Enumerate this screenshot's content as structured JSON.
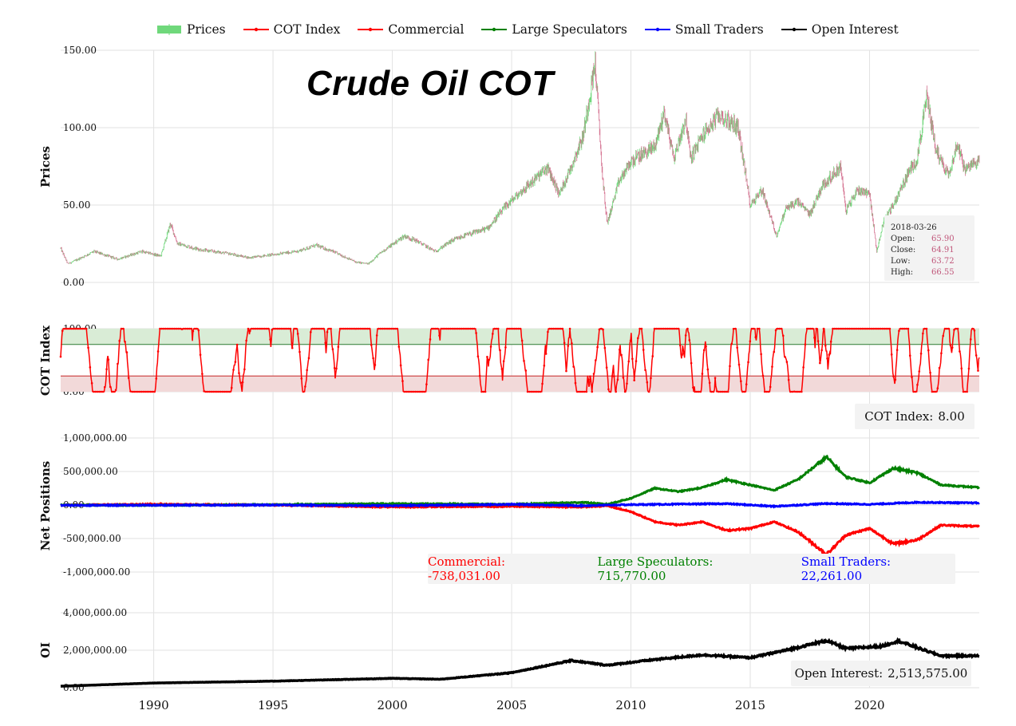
{
  "legend": [
    {
      "label": "Prices",
      "color": "#6fd87b",
      "kind": "bar"
    },
    {
      "label": "COT Index",
      "color": "#ff0000",
      "kind": "line"
    },
    {
      "label": "Commercial",
      "color": "#ff0000",
      "kind": "line"
    },
    {
      "label": "Large Speculators",
      "color": "#008000",
      "kind": "line"
    },
    {
      "label": "Small Traders",
      "color": "#0000ff",
      "kind": "line"
    },
    {
      "label": "Open Interest",
      "color": "#000000",
      "kind": "line"
    }
  ],
  "title": "Crude Oil COT",
  "colors": {
    "up": "#6fd87b",
    "down": "#d4708f",
    "grid": "#e2e2e2",
    "cot_high_band": "#d9ecd6",
    "cot_low_band": "#f2d9d9",
    "cot_upper_line": "#2e7d32",
    "cot_lower_line": "#c62828"
  },
  "ohlc_tooltip": {
    "date": "2018-03-26",
    "open_label": "Open:",
    "open": "65.90",
    "close_label": "Close:",
    "close": "64.91",
    "low_label": "Low:",
    "low": "63.72",
    "high_label": "High:",
    "high": "66.55"
  },
  "cot_tooltip": {
    "label": "COT Index:",
    "value": "8.00"
  },
  "net_tooltip": {
    "commercial_label": "Commercial:",
    "commercial": "-738,031.00",
    "large_label": "Large Speculators:",
    "large": "715,770.00",
    "small_label": "Small Traders:",
    "small": "22,261.00"
  },
  "oi_tooltip": {
    "label": "Open Interest:",
    "value": "2,513,575.00"
  },
  "chart_data": [
    {
      "type": "candlestick",
      "ylabel": "Prices",
      "ylim": [
        0,
        150
      ],
      "yticks": [
        "0.00",
        "50.00",
        "100.00",
        "150.00"
      ],
      "x_range": [
        1986.1,
        2024.6
      ],
      "x_tick_labels": [
        "1990",
        "1995",
        "2000",
        "2005",
        "2010",
        "2015",
        "2020"
      ],
      "close_trend": [
        [
          1986.1,
          22
        ],
        [
          1986.4,
          12
        ],
        [
          1986.7,
          14
        ],
        [
          1987.5,
          20
        ],
        [
          1988.5,
          15
        ],
        [
          1989.5,
          20
        ],
        [
          1990.3,
          17
        ],
        [
          1990.7,
          38
        ],
        [
          1991.0,
          25
        ],
        [
          1992.0,
          21
        ],
        [
          1993.0,
          19
        ],
        [
          1994.0,
          16
        ],
        [
          1995.0,
          18
        ],
        [
          1996.0,
          20
        ],
        [
          1996.8,
          24
        ],
        [
          1997.5,
          20
        ],
        [
          1998.5,
          13
        ],
        [
          1999.0,
          12
        ],
        [
          1999.5,
          19
        ],
        [
          2000.5,
          30
        ],
        [
          2001.0,
          27
        ],
        [
          2001.8,
          20
        ],
        [
          2002.5,
          27
        ],
        [
          2003.0,
          30
        ],
        [
          2004.0,
          35
        ],
        [
          2004.8,
          50
        ],
        [
          2005.5,
          60
        ],
        [
          2006.5,
          74
        ],
        [
          2007.0,
          57
        ],
        [
          2007.5,
          75
        ],
        [
          2008.0,
          95
        ],
        [
          2008.5,
          142
        ],
        [
          2008.8,
          70
        ],
        [
          2009.0,
          38
        ],
        [
          2009.5,
          65
        ],
        [
          2010.0,
          78
        ],
        [
          2011.0,
          88
        ],
        [
          2011.4,
          110
        ],
        [
          2011.8,
          80
        ],
        [
          2012.3,
          106
        ],
        [
          2012.5,
          80
        ],
        [
          2013.0,
          95
        ],
        [
          2013.7,
          108
        ],
        [
          2014.5,
          100
        ],
        [
          2015.0,
          50
        ],
        [
          2015.5,
          60
        ],
        [
          2016.1,
          30
        ],
        [
          2016.5,
          48
        ],
        [
          2017.0,
          52
        ],
        [
          2017.5,
          44
        ],
        [
          2018.0,
          62
        ],
        [
          2018.8,
          75
        ],
        [
          2019.0,
          46
        ],
        [
          2019.5,
          60
        ],
        [
          2020.0,
          58
        ],
        [
          2020.3,
          20
        ],
        [
          2020.6,
          40
        ],
        [
          2021.0,
          50
        ],
        [
          2021.6,
          70
        ],
        [
          2022.0,
          80
        ],
        [
          2022.4,
          120
        ],
        [
          2022.8,
          85
        ],
        [
          2023.3,
          70
        ],
        [
          2023.7,
          90
        ],
        [
          2024.0,
          72
        ],
        [
          2024.6,
          80
        ]
      ]
    },
    {
      "type": "line",
      "ylabel": "COT Index",
      "ylim": [
        0,
        100
      ],
      "yticks": [
        "0.00",
        "100.00"
      ],
      "bands": [
        [
          75,
          100
        ],
        [
          0,
          25
        ]
      ],
      "series": [
        {
          "name": "COT Index",
          "color": "#ff0000"
        }
      ]
    },
    {
      "type": "line",
      "ylabel": "Net Positions",
      "ylim": [
        -1000000,
        1000000
      ],
      "yticks": [
        "-1,000,000.00",
        "-500,000.00",
        "0.00",
        "500,000.00",
        "1,000,000.00"
      ],
      "series": [
        {
          "name": "Commercial",
          "color": "#ff0000",
          "trend": [
            [
              1986.1,
              0
            ],
            [
              1990,
              10000
            ],
            [
              1995,
              0
            ],
            [
              2000,
              -30000
            ],
            [
              2005,
              -20000
            ],
            [
              2008,
              -30000
            ],
            [
              2009,
              -10000
            ],
            [
              2010,
              -100000
            ],
            [
              2011,
              -250000
            ],
            [
              2012,
              -300000
            ],
            [
              2013,
              -250000
            ],
            [
              2014,
              -380000
            ],
            [
              2015,
              -350000
            ],
            [
              2016,
              -250000
            ],
            [
              2017,
              -400000
            ],
            [
              2018.2,
              -738031
            ],
            [
              2019,
              -450000
            ],
            [
              2020,
              -350000
            ],
            [
              2021,
              -580000
            ],
            [
              2022,
              -520000
            ],
            [
              2023,
              -300000
            ],
            [
              2024.6,
              -320000
            ]
          ]
        },
        {
          "name": "Large Speculators",
          "color": "#008000",
          "trend": [
            [
              1986.1,
              0
            ],
            [
              1990,
              -5000
            ],
            [
              1995,
              5000
            ],
            [
              2000,
              20000
            ],
            [
              2005,
              10000
            ],
            [
              2008,
              40000
            ],
            [
              2009,
              10000
            ],
            [
              2010,
              100000
            ],
            [
              2011,
              250000
            ],
            [
              2012,
              200000
            ],
            [
              2013,
              260000
            ],
            [
              2014,
              380000
            ],
            [
              2015,
              300000
            ],
            [
              2016,
              220000
            ],
            [
              2017,
              380000
            ],
            [
              2018.2,
              715770
            ],
            [
              2019,
              420000
            ],
            [
              2020,
              330000
            ],
            [
              2021,
              550000
            ],
            [
              2022,
              480000
            ],
            [
              2023,
              300000
            ],
            [
              2024.6,
              260000
            ]
          ]
        },
        {
          "name": "Small Traders",
          "color": "#0000ff",
          "trend": [
            [
              1986.1,
              -5000
            ],
            [
              1995,
              0
            ],
            [
              2000,
              -10000
            ],
            [
              2005,
              10000
            ],
            [
              2008,
              -10000
            ],
            [
              2010,
              5000
            ],
            [
              2014,
              20000
            ],
            [
              2016,
              -20000
            ],
            [
              2018.2,
              22261
            ],
            [
              2020,
              10000
            ],
            [
              2022,
              40000
            ],
            [
              2024.6,
              30000
            ]
          ]
        }
      ]
    },
    {
      "type": "line",
      "ylabel": "OI",
      "ylim": [
        0,
        4000000
      ],
      "yticks": [
        "0.00",
        "2,000,000.00",
        "4,000,000.00"
      ],
      "series": [
        {
          "name": "Open Interest",
          "color": "#000000",
          "trend": [
            [
              1986.1,
              80000
            ],
            [
              1990,
              250000
            ],
            [
              1995,
              350000
            ],
            [
              2000,
              500000
            ],
            [
              2002,
              450000
            ],
            [
              2005,
              800000
            ],
            [
              2007.5,
              1450000
            ],
            [
              2009,
              1200000
            ],
            [
              2011,
              1500000
            ],
            [
              2013,
              1750000
            ],
            [
              2015,
              1600000
            ],
            [
              2016.5,
              2000000
            ],
            [
              2018.2,
              2513575
            ],
            [
              2019,
              2100000
            ],
            [
              2020.5,
              2200000
            ],
            [
              2021.2,
              2500000
            ],
            [
              2022.3,
              2000000
            ],
            [
              2023,
              1700000
            ],
            [
              2024.6,
              1700000
            ]
          ]
        }
      ]
    }
  ]
}
